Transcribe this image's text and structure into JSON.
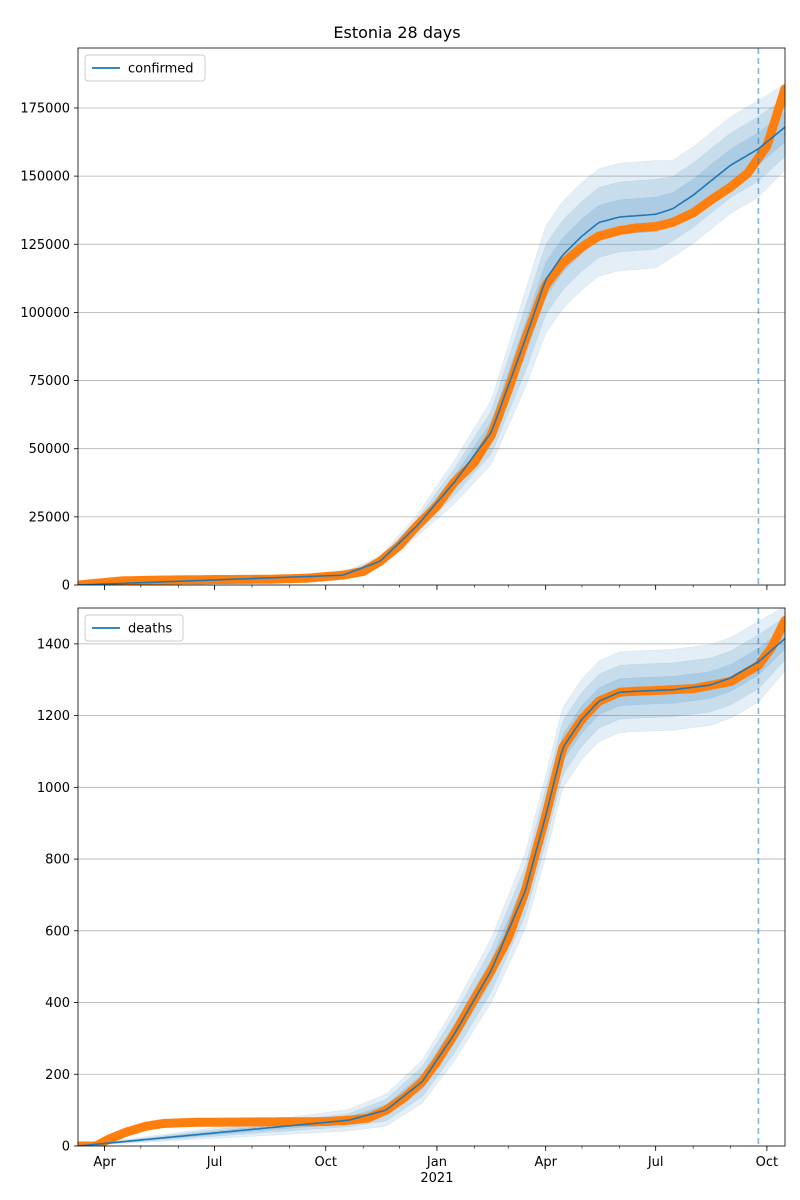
{
  "title": "Estonia 28 days",
  "colors": {
    "model": "#1f77b4",
    "observed": "#ff7f0e",
    "band": "#1f77b4",
    "grid": "#b0b0b0",
    "forecast_line": "#1f77b4"
  },
  "x_axis": {
    "start": "2020-03-10",
    "end": "2021-10-16",
    "ticks": [
      {
        "date": "2020-04-01",
        "label": "Apr"
      },
      {
        "date": "2020-07-01",
        "label": "Jul"
      },
      {
        "date": "2020-10-01",
        "label": "Oct"
      },
      {
        "date": "2021-01-01",
        "label": "Jan"
      },
      {
        "date": "2021-04-01",
        "label": "Apr"
      },
      {
        "date": "2021-07-01",
        "label": "Jul"
      },
      {
        "date": "2021-10-01",
        "label": "Oct"
      }
    ],
    "year_label": "2021",
    "year_label_date": "2021-01-01",
    "forecast_start": "2021-09-24"
  },
  "chart_data": [
    {
      "type": "line",
      "legend": "confirmed",
      "legend_position": "top-left",
      "grid": "horizontal",
      "ylim": [
        0,
        197000
      ],
      "yticks": [
        0,
        25000,
        50000,
        75000,
        100000,
        125000,
        150000,
        175000
      ],
      "observed": {
        "x": [
          "2020-03-10",
          "2020-04-15",
          "2020-05-15",
          "2020-07-01",
          "2020-08-15",
          "2020-09-15",
          "2020-10-15",
          "2020-11-01",
          "2020-11-15",
          "2020-12-01",
          "2020-12-15",
          "2021-01-01",
          "2021-01-15",
          "2021-02-01",
          "2021-02-15",
          "2021-03-01",
          "2021-03-15",
          "2021-04-01",
          "2021-04-15",
          "2021-05-01",
          "2021-05-15",
          "2021-06-01",
          "2021-06-15",
          "2021-07-01",
          "2021-07-15",
          "2021-08-01",
          "2021-08-15",
          "2021-09-01",
          "2021-09-15",
          "2021-10-01",
          "2021-10-16"
        ],
        "y": [
          0,
          1500,
          1800,
          2000,
          2100,
          2500,
          3600,
          5000,
          8700,
          14500,
          21500,
          29000,
          37500,
          45000,
          55000,
          71500,
          90000,
          110000,
          118000,
          124000,
          128000,
          130000,
          131000,
          131500,
          133000,
          136500,
          141000,
          146000,
          151000,
          161000,
          182000
        ]
      },
      "model": {
        "x": [
          "2020-03-10",
          "2020-10-15",
          "2020-11-15",
          "2020-12-15",
          "2021-01-15",
          "2021-02-15",
          "2021-03-15",
          "2021-04-01",
          "2021-04-15",
          "2021-05-01",
          "2021-05-15",
          "2021-06-01",
          "2021-07-01",
          "2021-07-15",
          "2021-08-01",
          "2021-08-15",
          "2021-09-01",
          "2021-09-24",
          "2021-10-16"
        ],
        "y": [
          0,
          3600,
          8700,
          21500,
          37500,
          56000,
          90000,
          112000,
          121000,
          128000,
          133000,
          135000,
          136000,
          138000,
          143000,
          148000,
          154000,
          160000,
          168000
        ]
      },
      "bands": [
        {
          "offset_frac": [
            0,
            0.005,
            0.01,
            0.02,
            0.04,
            0.06,
            0.09,
            0.1,
            0.1,
            0.1,
            0.1,
            0.1,
            0.1,
            0.09,
            0.09,
            0.09,
            0.09,
            0.09,
            0.08
          ],
          "alpha": 0.12
        },
        {
          "offset_frac": [
            0,
            0.003,
            0.006,
            0.012,
            0.025,
            0.04,
            0.06,
            0.065,
            0.065,
            0.065,
            0.065,
            0.065,
            0.065,
            0.06,
            0.06,
            0.06,
            0.06,
            0.06,
            0.055
          ],
          "alpha": 0.14
        },
        {
          "offset_frac": [
            0,
            0.0015,
            0.003,
            0.006,
            0.012,
            0.02,
            0.03,
            0.032,
            0.032,
            0.032,
            0.032,
            0.032,
            0.032,
            0.03,
            0.03,
            0.03,
            0.03,
            0.03,
            0.028
          ],
          "alpha": 0.16
        }
      ]
    },
    {
      "type": "line",
      "legend": "deaths",
      "legend_position": "top-left",
      "grid": "horizontal",
      "ylim": [
        0,
        1500
      ],
      "yticks": [
        0,
        200,
        400,
        600,
        800,
        1000,
        1200,
        1400
      ],
      "observed": {
        "x": [
          "2020-03-10",
          "2020-03-25",
          "2020-04-05",
          "2020-04-20",
          "2020-05-05",
          "2020-05-20",
          "2020-06-15",
          "2020-08-01",
          "2020-10-01",
          "2020-10-20",
          "2020-11-05",
          "2020-11-20",
          "2020-12-05",
          "2020-12-20",
          "2021-01-01",
          "2021-01-15",
          "2021-02-01",
          "2021-02-15",
          "2021-03-01",
          "2021-03-15",
          "2021-04-01",
          "2021-04-15",
          "2021-05-01",
          "2021-05-15",
          "2021-06-01",
          "2021-06-15",
          "2021-07-01",
          "2021-08-01",
          "2021-09-01",
          "2021-09-24",
          "2021-10-05",
          "2021-10-16"
        ],
        "y": [
          0,
          0,
          20,
          40,
          55,
          63,
          66,
          67,
          68,
          72,
          78,
          100,
          135,
          180,
          235,
          310,
          410,
          490,
          580,
          710,
          920,
          1110,
          1190,
          1240,
          1265,
          1268,
          1270,
          1275,
          1295,
          1340,
          1390,
          1465
        ]
      },
      "model": {
        "x": [
          "2020-03-10",
          "2020-10-20",
          "2020-11-20",
          "2020-12-20",
          "2021-01-15",
          "2021-02-15",
          "2021-03-15",
          "2021-04-01",
          "2021-04-15",
          "2021-05-01",
          "2021-05-15",
          "2021-06-01",
          "2021-06-15",
          "2021-07-15",
          "2021-08-15",
          "2021-09-01",
          "2021-09-24",
          "2021-10-16"
        ],
        "y": [
          0,
          72,
          100,
          180,
          310,
          490,
          710,
          920,
          1110,
          1190,
          1240,
          1265,
          1268,
          1272,
          1285,
          1305,
          1350,
          1415
        ]
      },
      "bands": [
        {
          "offset_frac": [
            0,
            0.02,
            0.03,
            0.04,
            0.05,
            0.06,
            0.07,
            0.075,
            0.075,
            0.075,
            0.075,
            0.075,
            0.075,
            0.075,
            0.075,
            0.075,
            0.075,
            0.06
          ],
          "alpha": 0.12
        },
        {
          "offset_frac": [
            0,
            0.012,
            0.02,
            0.028,
            0.035,
            0.04,
            0.045,
            0.05,
            0.05,
            0.05,
            0.05,
            0.05,
            0.05,
            0.05,
            0.05,
            0.05,
            0.05,
            0.04
          ],
          "alpha": 0.14
        },
        {
          "offset_frac": [
            0,
            0.006,
            0.01,
            0.014,
            0.017,
            0.02,
            0.022,
            0.025,
            0.025,
            0.025,
            0.025,
            0.025,
            0.025,
            0.025,
            0.025,
            0.025,
            0.025,
            0.02
          ],
          "alpha": 0.16
        }
      ]
    }
  ]
}
